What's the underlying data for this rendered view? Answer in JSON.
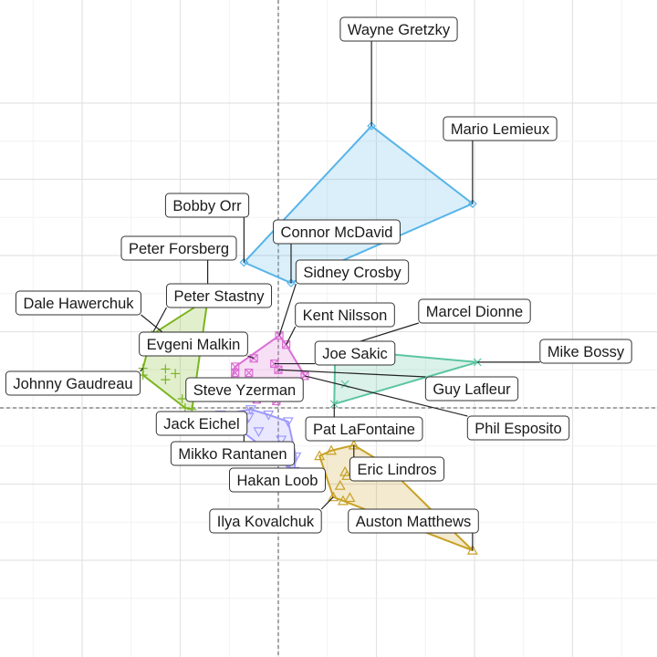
{
  "chart_data": {
    "type": "scatter",
    "title": "",
    "xlabel": "",
    "ylabel": "",
    "grid": true,
    "reference_lines": {
      "x": 0,
      "y": 0
    },
    "xlim": [
      -2.8,
      3.9
    ],
    "ylim": [
      -2.5,
      4.2
    ],
    "series": [
      {
        "cluster": 1,
        "color": "#56B4E9",
        "marker": "diamond",
        "points": [
          {
            "player": "Wayne Gretzky",
            "x": 0.95,
            "y": 3.7
          },
          {
            "player": "Mario Lemieux",
            "x": 1.98,
            "y": 2.68
          },
          {
            "player": "Bobby Orr",
            "x": -0.35,
            "y": 1.91
          },
          {
            "player": "Connor McDavid",
            "x": 0.13,
            "y": 1.64
          }
        ]
      },
      {
        "cluster": 2,
        "color": "#7AB51D",
        "marker": "plus",
        "points": [
          {
            "player": "Peter Forsberg",
            "x": -0.72,
            "y": 1.43
          },
          {
            "player": "Peter Stastny",
            "x": -1.29,
            "y": 0.96
          },
          {
            "player": "Dale Hawerchuk",
            "x": -1.12,
            "y": 0.93
          },
          {
            "player": "Johnny Gaudreau",
            "x": -1.38,
            "y": 0.52
          },
          {
            "player": "Jack Eichel",
            "x": -0.88,
            "y": -0.02
          },
          {
            "player": "",
            "x": -1.38,
            "y": 0.43
          },
          {
            "player": "",
            "x": -1.15,
            "y": 0.51
          },
          {
            "player": "",
            "x": -1.15,
            "y": 0.37
          },
          {
            "player": "",
            "x": -1.05,
            "y": 0.45
          },
          {
            "player": "",
            "x": -0.98,
            "y": 0.12
          },
          {
            "player": "",
            "x": -0.95,
            "y": 0.0
          }
        ]
      },
      {
        "cluster": 3,
        "color": "#DB6FD4",
        "marker": "square-x",
        "points": [
          {
            "player": "Sidney Crosby",
            "x": 0.01,
            "y": 0.95
          },
          {
            "player": "Evgeni Malkin",
            "x": -0.25,
            "y": 0.65
          },
          {
            "player": "Steve Yzerman",
            "x": -0.52,
            "y": 0.2
          },
          {
            "player": "Kent Nilsson",
            "x": 0.08,
            "y": 0.83
          },
          {
            "player": "Joe Sakic",
            "x": -0.04,
            "y": 0.58
          },
          {
            "player": "Guy Lafleur",
            "x": 0.0,
            "y": 0.5
          },
          {
            "player": "Phil Esposito",
            "x": 0.27,
            "y": 0.42
          },
          {
            "player": "",
            "x": -0.44,
            "y": 0.54
          },
          {
            "player": "",
            "x": -0.44,
            "y": 0.46
          },
          {
            "player": "",
            "x": -0.38,
            "y": 0.32
          },
          {
            "player": "",
            "x": -0.34,
            "y": 0.18
          },
          {
            "player": "",
            "x": -0.27,
            "y": 0.27
          },
          {
            "player": "",
            "x": -0.22,
            "y": 0.11
          },
          {
            "player": "",
            "x": -0.1,
            "y": 0.28
          },
          {
            "player": "",
            "x": -0.02,
            "y": 0.09
          },
          {
            "player": "",
            "x": -0.3,
            "y": 0.46
          },
          {
            "player": "",
            "x": -0.48,
            "y": 0.17
          }
        ]
      },
      {
        "cluster": 4,
        "color": "#5BC5A1",
        "marker": "x",
        "points": [
          {
            "player": "Marcel Dionne",
            "x": 0.58,
            "y": 0.77
          },
          {
            "player": "Mike Bossy",
            "x": 2.03,
            "y": 0.6
          },
          {
            "player": "Pat LaFontaine",
            "x": 0.57,
            "y": 0.05
          },
          {
            "player": "",
            "x": 0.68,
            "y": 0.31
          }
        ]
      },
      {
        "cluster": 5,
        "color": "#9C98FC",
        "marker": "triangle-down",
        "points": [
          {
            "player": "Mikko Rantanen",
            "x": -0.35,
            "y": -0.22
          },
          {
            "player": "Hakan Loob",
            "x": 0.16,
            "y": -0.83
          },
          {
            "player": "",
            "x": -0.59,
            "y": -0.09
          },
          {
            "player": "",
            "x": -0.44,
            "y": -0.14
          },
          {
            "player": "",
            "x": -0.28,
            "y": -0.02
          },
          {
            "player": "",
            "x": -0.1,
            "y": -0.09
          },
          {
            "player": "",
            "x": 0.1,
            "y": -0.18
          },
          {
            "player": "",
            "x": -0.2,
            "y": -0.31
          },
          {
            "player": "",
            "x": 0.03,
            "y": -0.42
          },
          {
            "player": "",
            "x": -0.07,
            "y": -0.55
          },
          {
            "player": "",
            "x": 0.18,
            "y": -0.64
          },
          {
            "player": "",
            "x": 0.1,
            "y": -0.75
          },
          {
            "player": "",
            "x": -0.3,
            "y": -0.12
          }
        ]
      },
      {
        "cluster": 6,
        "color": "#C8A125",
        "marker": "triangle",
        "points": [
          {
            "player": "Eric Lindros",
            "x": 0.77,
            "y": -0.49
          },
          {
            "player": "Auston Matthews",
            "x": 1.98,
            "y": -1.87
          },
          {
            "player": "Ilya Kovalchuk",
            "x": 0.56,
            "y": -1.17
          },
          {
            "player": "",
            "x": 0.42,
            "y": -0.63
          },
          {
            "player": "",
            "x": 0.68,
            "y": -0.84
          },
          {
            "player": "",
            "x": 0.92,
            "y": -0.91
          },
          {
            "player": "",
            "x": 1.08,
            "y": -0.73
          },
          {
            "player": "",
            "x": 0.63,
            "y": -1.02
          },
          {
            "player": "",
            "x": 0.73,
            "y": -1.18
          },
          {
            "player": "",
            "x": 0.66,
            "y": -1.22
          },
          {
            "player": "",
            "x": 0.54,
            "y": -0.56
          },
          {
            "player": "",
            "x": 0.7,
            "y": -0.89
          }
        ]
      }
    ]
  }
}
